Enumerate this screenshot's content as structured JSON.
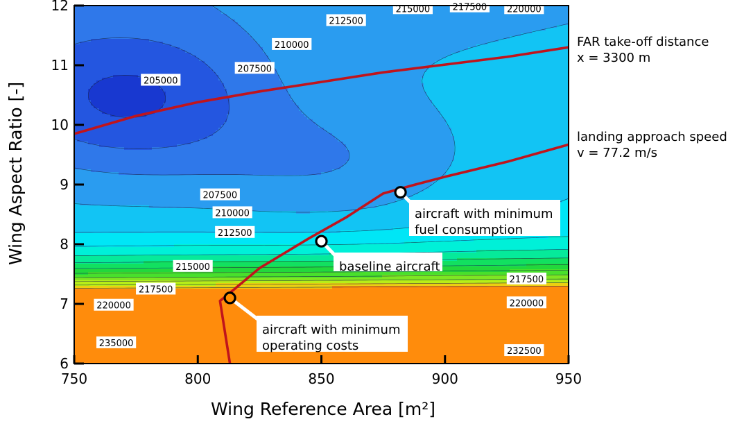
{
  "chart_data": {
    "type": "contour",
    "xlabel": "Wing Reference Area  [m²]",
    "ylabel": "Wing Aspect Ratio  [-]",
    "xlim": [
      750,
      950
    ],
    "ylim": [
      6,
      12
    ],
    "x_ticks": [
      750,
      800,
      850,
      900,
      950
    ],
    "y_ticks": [
      6,
      7,
      8,
      9,
      10,
      11,
      12
    ],
    "x_tick_labels": [
      "750",
      "800",
      "850",
      "900",
      "950"
    ],
    "y_tick_labels": [
      "6",
      "7",
      "8",
      "9",
      "10",
      "11",
      "12"
    ],
    "grid": false,
    "contour_levels": [
      205000,
      207500,
      210000,
      212500,
      215000,
      217500,
      220000,
      222500,
      225000,
      227500,
      230000,
      232500,
      235000,
      237500
    ],
    "contour_labels": [
      {
        "text": "205000",
        "x": 785,
        "y": 10.75
      },
      {
        "text": "207500",
        "x": 823,
        "y": 10.95
      },
      {
        "text": "210000",
        "x": 838,
        "y": 11.35
      },
      {
        "text": "212500",
        "x": 860,
        "y": 11.75
      },
      {
        "text": "215000",
        "x": 887,
        "y": 11.95
      },
      {
        "text": "217500",
        "x": 910,
        "y": 11.98
      },
      {
        "text": "220000",
        "x": 932,
        "y": 11.95
      },
      {
        "text": "207500",
        "x": 809,
        "y": 8.83
      },
      {
        "text": "210000",
        "x": 814,
        "y": 8.53
      },
      {
        "text": "212500",
        "x": 815,
        "y": 8.2
      },
      {
        "text": "215000",
        "x": 798,
        "y": 7.63
      },
      {
        "text": "217500",
        "x": 783,
        "y": 7.25
      },
      {
        "text": "220000",
        "x": 766,
        "y": 6.98
      },
      {
        "text": "235000",
        "x": 767,
        "y": 6.35
      },
      {
        "text": "217500",
        "x": 933,
        "y": 7.42
      },
      {
        "text": "220000",
        "x": 933,
        "y": 7.02
      },
      {
        "text": "232500",
        "x": 932,
        "y": 6.22
      }
    ],
    "constraint_lines": [
      {
        "name": "FAR take-off distance",
        "label_line1": "FAR take-off distance",
        "label_line2": "x = 3300 m",
        "color": "#c0141c",
        "x": [
          750,
          775,
          800,
          825,
          850,
          875,
          900,
          925,
          950
        ],
        "y": [
          9.85,
          10.15,
          10.38,
          10.56,
          10.72,
          10.88,
          11.01,
          11.14,
          11.3
        ]
      },
      {
        "name": "landing approach speed",
        "label_line1": "landing approach speed",
        "label_line2": "v = 77.2 m/s",
        "color": "#c0141c",
        "x": [
          813,
          809,
          812,
          825,
          845,
          860,
          875,
          888,
          900,
          925,
          950
        ],
        "y": [
          6.0,
          7.05,
          7.15,
          7.6,
          8.1,
          8.45,
          8.85,
          9.0,
          9.13,
          9.38,
          9.67
        ]
      }
    ],
    "points": [
      {
        "name": "aircraft with minimum fuel consumption",
        "line1": "aircraft with minimum",
        "line2": "fuel consumption",
        "x": 882,
        "y": 8.87,
        "fill": "#ffffff"
      },
      {
        "name": "baseline aircraft",
        "line1": "baseline aircraft",
        "line2": "",
        "x": 850,
        "y": 8.05,
        "fill": "#ffffff"
      },
      {
        "name": "aircraft with minimum operating costs",
        "line1": "aircraft with minimum",
        "line2": "operating costs",
        "x": 813,
        "y": 7.1,
        "fill": "#ff8c00"
      }
    ],
    "colors": {
      "low": "#1030c8",
      "mid_low": "#2f7de0",
      "mid": "#00e8f8",
      "mid_high": "#10d040",
      "high": "#d8f000",
      "highest": "#ff4000",
      "constraint": "#c0141c"
    }
  }
}
